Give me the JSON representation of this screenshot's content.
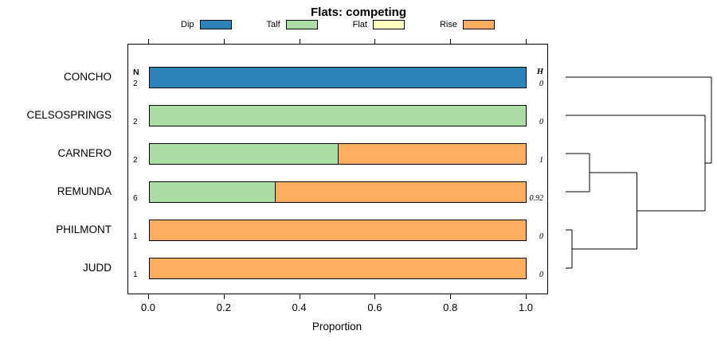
{
  "chart_data": {
    "type": "bar",
    "orientation": "horizontal",
    "stacked": true,
    "title": "Flats: competing",
    "xlabel": "Proportion",
    "xlim": [
      0,
      1
    ],
    "xticks": [
      {
        "value": 0.0,
        "label": "0.0"
      },
      {
        "value": 0.2,
        "label": "0.2"
      },
      {
        "value": 0.4,
        "label": "0.4"
      },
      {
        "value": 0.6,
        "label": "0.6"
      },
      {
        "value": 0.8,
        "label": "0.8"
      },
      {
        "value": 1.0,
        "label": "1.0"
      }
    ],
    "legend": [
      {
        "label": "Dip",
        "color": "#2b83ba"
      },
      {
        "label": "Talf",
        "color": "#abdda4"
      },
      {
        "label": "Flat",
        "color": "#ffffbf"
      },
      {
        "label": "Rise",
        "color": "#fdae61"
      }
    ],
    "column_headers": {
      "left": "N",
      "right": "H"
    },
    "rows": [
      {
        "label": "CONCHO",
        "n": "2",
        "h": "0",
        "segments": [
          {
            "category": "Dip",
            "value": 1.0
          }
        ]
      },
      {
        "label": "CELSOSPRINGS",
        "n": "2",
        "h": "0",
        "segments": [
          {
            "category": "Talf",
            "value": 1.0
          }
        ]
      },
      {
        "label": "CARNERO",
        "n": "2",
        "h": "1",
        "segments": [
          {
            "category": "Talf",
            "value": 0.5
          },
          {
            "category": "Rise",
            "value": 0.5
          }
        ]
      },
      {
        "label": "REMUNDA",
        "n": "6",
        "h": "0.92",
        "segments": [
          {
            "category": "Talf",
            "value": 0.333
          },
          {
            "category": "Rise",
            "value": 0.667
          }
        ]
      },
      {
        "label": "PHILMONT",
        "n": "1",
        "h": "0",
        "segments": [
          {
            "category": "Rise",
            "value": 1.0
          }
        ]
      },
      {
        "label": "JUDD",
        "n": "1",
        "h": "0",
        "segments": [
          {
            "category": "Rise",
            "value": 1.0
          }
        ]
      }
    ],
    "dendrogram": {
      "note": "heights normalized 0-1 of max merge distance",
      "tree": {
        "height": 1.0,
        "children": [
          {
            "leaf": "CONCHO",
            "row": 0
          },
          {
            "height": 0.955,
            "children": [
              {
                "leaf": "CELSOSPRINGS",
                "row": 1
              },
              {
                "height": 0.49,
                "children": [
                  {
                    "height": 0.165,
                    "children": [
                      {
                        "leaf": "CARNERO",
                        "row": 2
                      },
                      {
                        "leaf": "REMUNDA",
                        "row": 3
                      }
                    ]
                  },
                  {
                    "height": 0.045,
                    "children": [
                      {
                        "leaf": "PHILMONT",
                        "row": 4
                      },
                      {
                        "leaf": "JUDD",
                        "row": 5
                      }
                    ]
                  }
                ]
              }
            ]
          }
        ]
      }
    }
  }
}
